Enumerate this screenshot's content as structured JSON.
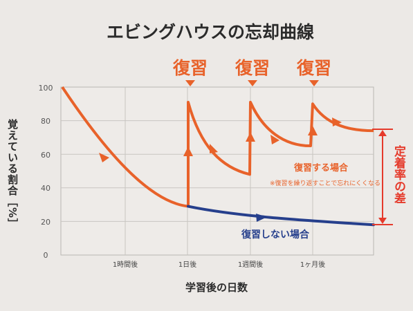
{
  "chart_data": {
    "type": "line",
    "title": "エビングハウスの忘却曲線",
    "xlabel": "学習後の日数",
    "ylabel": "覚えている割合［%］",
    "ylim": [
      0,
      100
    ],
    "yticks": [
      "0",
      "20",
      "40",
      "60",
      "80",
      "100"
    ],
    "xticks": [
      "1時間後",
      "1日後",
      "1週間後",
      "1ヶ月後"
    ],
    "grid": true,
    "review_marker_label": "復習",
    "series": [
      {
        "name": "復習する場合",
        "note": "※復習を繰り返すことで忘れにくくなる",
        "color": "#e8622a",
        "points": [
          {
            "x": "0",
            "y": 100
          },
          {
            "x": "1時間後",
            "y": 60
          },
          {
            "x": "1日後",
            "y": 29
          },
          {
            "x": "1日後",
            "y": 91
          },
          {
            "x": "1日後+",
            "y": 48
          },
          {
            "x": "1週間後",
            "y": 91
          },
          {
            "x": "1週間後+",
            "y": 65
          },
          {
            "x": "1ヶ月後",
            "y": 90
          },
          {
            "x": "end",
            "y": 74
          }
        ]
      },
      {
        "name": "復習しない場合",
        "color": "#263f8c",
        "points": [
          {
            "x": "1日後",
            "y": 29
          },
          {
            "x": "1ヶ月後",
            "y": 20
          },
          {
            "x": "end",
            "y": 18
          }
        ]
      }
    ],
    "annotations": {
      "difference_label": "定着率の差",
      "difference_color": "#e53a2b"
    }
  }
}
